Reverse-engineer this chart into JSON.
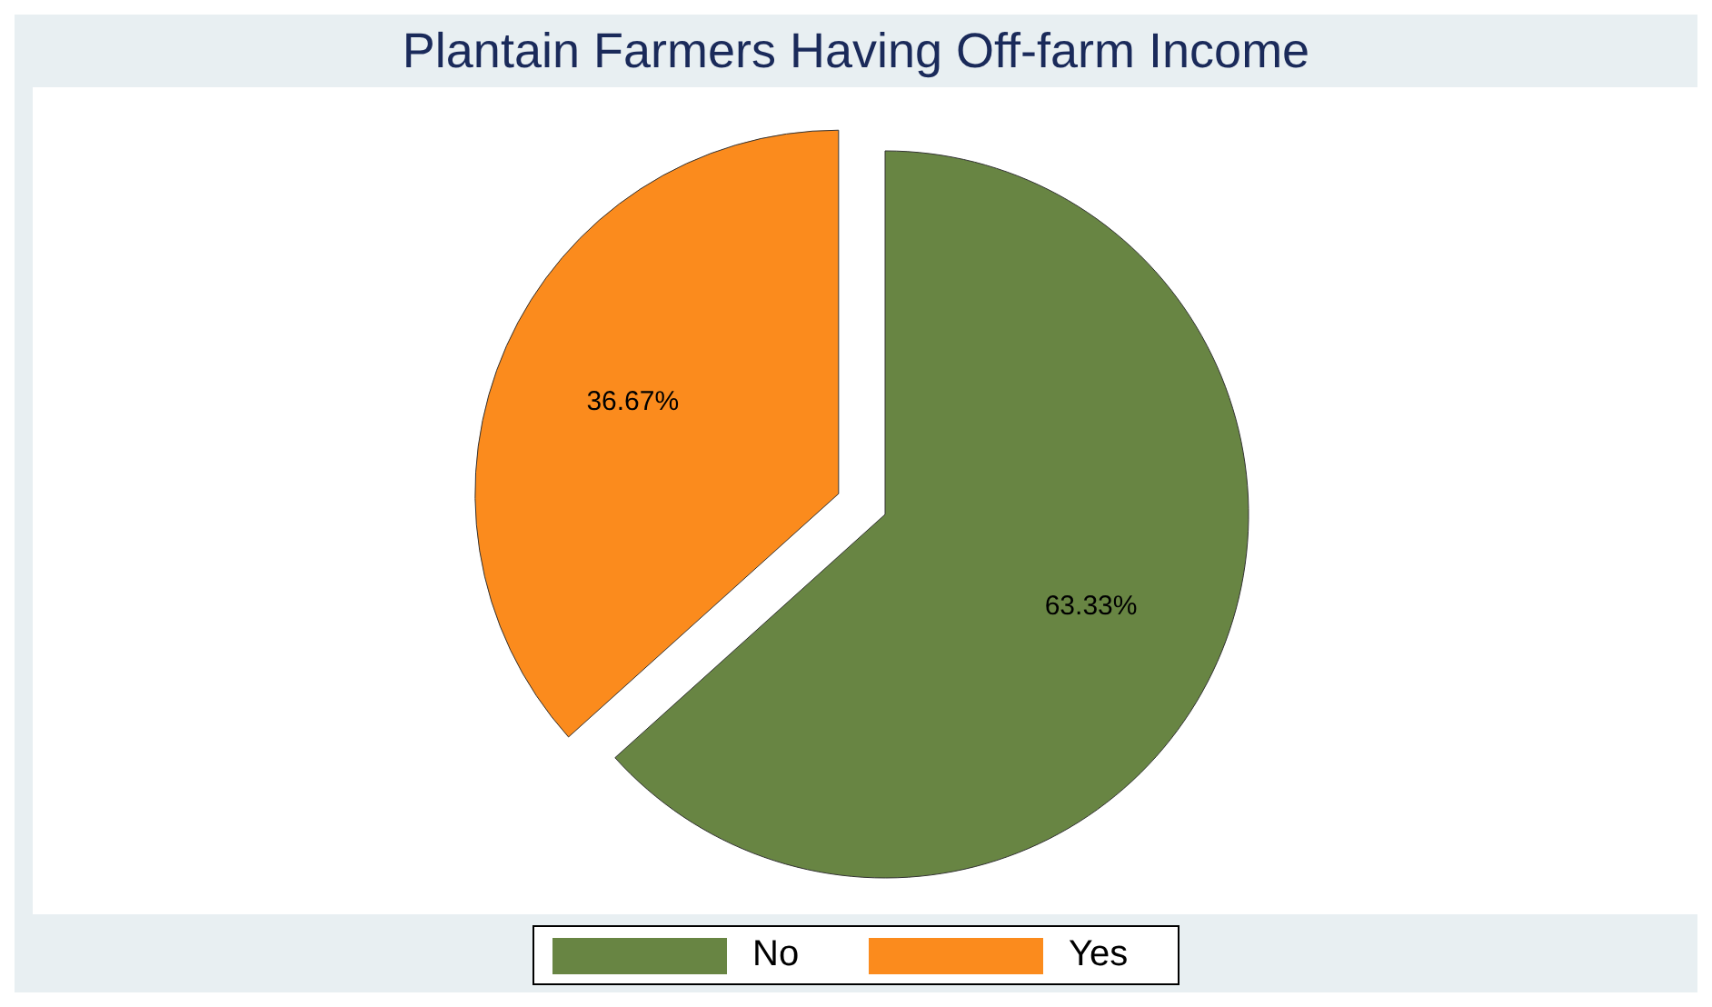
{
  "chart_data": {
    "type": "pie",
    "title": "Plantain Farmers Having Off-farm Income",
    "categories": [
      "No",
      "Yes"
    ],
    "values": [
      63.33,
      36.67
    ],
    "colors": [
      "#688543",
      "#fb8b1d"
    ],
    "value_labels": [
      "63.33%",
      "36.67%"
    ],
    "legend": "bottom"
  }
}
